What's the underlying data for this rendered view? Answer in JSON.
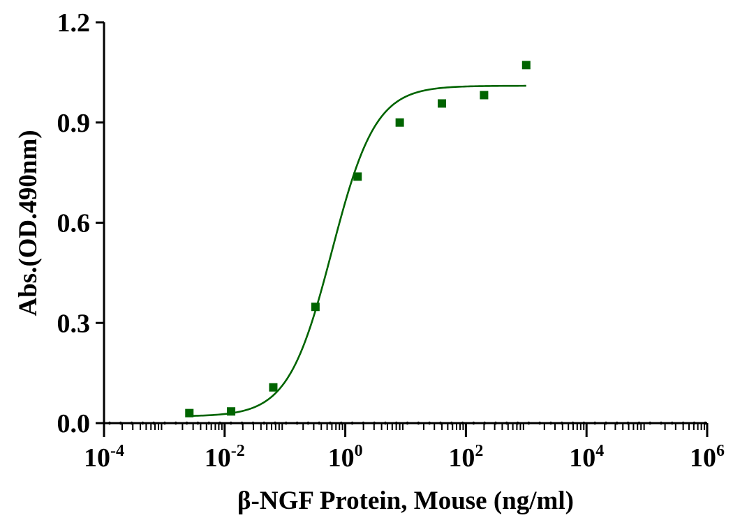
{
  "chart_data": {
    "type": "scatter",
    "title": "",
    "xlabel": "β-NGF Protein, Mouse  (ng/ml)",
    "ylabel": "Abs.(OD.490nm)",
    "x_scale": "log",
    "xlim": [
      0.0001,
      1000000
    ],
    "ylim": [
      0.0,
      1.2
    ],
    "x_ticks": [
      {
        "base": "10",
        "exp": "-4",
        "value": 0.0001
      },
      {
        "base": "10",
        "exp": "-2",
        "value": 0.01
      },
      {
        "base": "10",
        "exp": "0",
        "value": 1
      },
      {
        "base": "10",
        "exp": "2",
        "value": 100
      },
      {
        "base": "10",
        "exp": "4",
        "value": 10000
      },
      {
        "base": "10",
        "exp": "6",
        "value": 1000000
      }
    ],
    "y_ticks": [
      "0.0",
      "0.3",
      "0.6",
      "0.9",
      "1.2"
    ],
    "grid": false,
    "color": "#006400",
    "series": [
      {
        "marker": "square",
        "x": [
          0.0026,
          0.0128,
          0.064,
          0.32,
          1.6,
          8,
          40,
          200,
          1000
        ],
        "y": [
          0.03,
          0.035,
          0.107,
          0.348,
          0.738,
          0.9,
          0.957,
          0.982,
          1.072
        ]
      }
    ],
    "fit_curve": {
      "model": "4PL",
      "bottom": 0.02,
      "top": 1.01,
      "ec50": 0.6,
      "hill": 1.2,
      "x_range": [
        0.0026,
        1000
      ]
    }
  }
}
